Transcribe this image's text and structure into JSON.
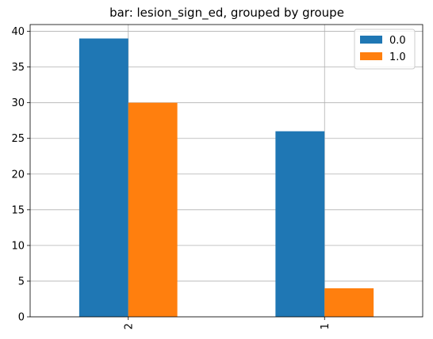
{
  "chart_data": {
    "type": "bar",
    "title": "bar: lesion_sign_ed, grouped by groupe",
    "xlabel": "",
    "ylabel": "",
    "categories": [
      "2",
      "1"
    ],
    "series": [
      {
        "name": "0.0",
        "values": [
          39,
          26
        ],
        "color": "#1f77b4"
      },
      {
        "name": "1.0",
        "values": [
          30,
          4
        ],
        "color": "#ff7f0e"
      }
    ],
    "ylim": [
      0,
      40.95
    ],
    "yticks": [
      0,
      5,
      10,
      15,
      20,
      25,
      30,
      35,
      40
    ],
    "ytick_labels": [
      "0",
      "5",
      "10",
      "15",
      "20",
      "25",
      "30",
      "35",
      "40"
    ],
    "grid": true,
    "legend_position": "top-right",
    "xtick_rotation": "vertical"
  }
}
